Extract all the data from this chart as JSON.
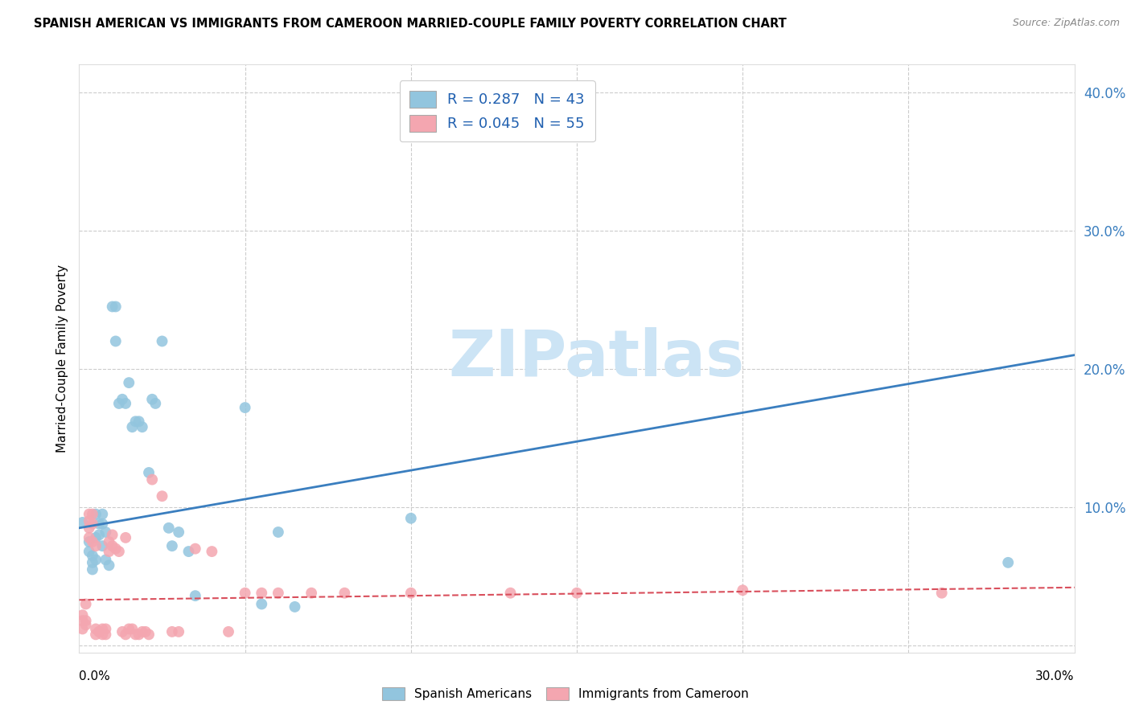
{
  "title": "SPANISH AMERICAN VS IMMIGRANTS FROM CAMEROON MARRIED-COUPLE FAMILY POVERTY CORRELATION CHART",
  "source": "Source: ZipAtlas.com",
  "ylabel": "Married-Couple Family Poverty",
  "xlim": [
    0.0,
    0.3
  ],
  "ylim": [
    -0.005,
    0.42
  ],
  "yticks": [
    0.0,
    0.1,
    0.2,
    0.3,
    0.4
  ],
  "ytick_labels": [
    "",
    "10.0%",
    "20.0%",
    "30.0%",
    "40.0%"
  ],
  "xticks": [
    0.0,
    0.05,
    0.1,
    0.15,
    0.2,
    0.25,
    0.3
  ],
  "watermark_text": "ZIPatlas",
  "legend_r1_label": "R = 0.287   N = 43",
  "legend_r2_label": "R = 0.045   N = 55",
  "blue_color": "#92c5de",
  "pink_color": "#f4a6b0",
  "blue_line_color": "#3a7ebf",
  "pink_line_color": "#d94f5c",
  "blue_scatter": [
    [
      0.001,
      0.089
    ],
    [
      0.003,
      0.075
    ],
    [
      0.003,
      0.068
    ],
    [
      0.004,
      0.065
    ],
    [
      0.004,
      0.055
    ],
    [
      0.004,
      0.06
    ],
    [
      0.005,
      0.078
    ],
    [
      0.005,
      0.062
    ],
    [
      0.005,
      0.095
    ],
    [
      0.006,
      0.08
    ],
    [
      0.006,
      0.088
    ],
    [
      0.007,
      0.072
    ],
    [
      0.007,
      0.088
    ],
    [
      0.007,
      0.095
    ],
    [
      0.008,
      0.082
    ],
    [
      0.008,
      0.062
    ],
    [
      0.009,
      0.058
    ],
    [
      0.01,
      0.245
    ],
    [
      0.011,
      0.245
    ],
    [
      0.011,
      0.22
    ],
    [
      0.012,
      0.175
    ],
    [
      0.013,
      0.178
    ],
    [
      0.014,
      0.175
    ],
    [
      0.015,
      0.19
    ],
    [
      0.016,
      0.158
    ],
    [
      0.017,
      0.162
    ],
    [
      0.018,
      0.162
    ],
    [
      0.019,
      0.158
    ],
    [
      0.021,
      0.125
    ],
    [
      0.022,
      0.178
    ],
    [
      0.023,
      0.175
    ],
    [
      0.025,
      0.22
    ],
    [
      0.027,
      0.085
    ],
    [
      0.028,
      0.072
    ],
    [
      0.03,
      0.082
    ],
    [
      0.033,
      0.068
    ],
    [
      0.035,
      0.036
    ],
    [
      0.05,
      0.172
    ],
    [
      0.055,
      0.03
    ],
    [
      0.06,
      0.082
    ],
    [
      0.065,
      0.028
    ],
    [
      0.1,
      0.092
    ],
    [
      0.28,
      0.06
    ]
  ],
  "pink_scatter": [
    [
      0.001,
      0.018
    ],
    [
      0.001,
      0.022
    ],
    [
      0.001,
      0.012
    ],
    [
      0.002,
      0.03
    ],
    [
      0.002,
      0.018
    ],
    [
      0.002,
      0.015
    ],
    [
      0.003,
      0.095
    ],
    [
      0.003,
      0.085
    ],
    [
      0.003,
      0.09
    ],
    [
      0.003,
      0.078
    ],
    [
      0.004,
      0.088
    ],
    [
      0.004,
      0.075
    ],
    [
      0.004,
      0.095
    ],
    [
      0.005,
      0.072
    ],
    [
      0.005,
      0.012
    ],
    [
      0.005,
      0.008
    ],
    [
      0.006,
      0.01
    ],
    [
      0.006,
      0.01
    ],
    [
      0.007,
      0.008
    ],
    [
      0.007,
      0.012
    ],
    [
      0.008,
      0.012
    ],
    [
      0.008,
      0.008
    ],
    [
      0.009,
      0.068
    ],
    [
      0.009,
      0.075
    ],
    [
      0.01,
      0.072
    ],
    [
      0.01,
      0.08
    ],
    [
      0.011,
      0.07
    ],
    [
      0.012,
      0.068
    ],
    [
      0.013,
      0.01
    ],
    [
      0.014,
      0.078
    ],
    [
      0.014,
      0.008
    ],
    [
      0.015,
      0.012
    ],
    [
      0.016,
      0.012
    ],
    [
      0.017,
      0.008
    ],
    [
      0.018,
      0.008
    ],
    [
      0.019,
      0.01
    ],
    [
      0.02,
      0.01
    ],
    [
      0.021,
      0.008
    ],
    [
      0.022,
      0.12
    ],
    [
      0.025,
      0.108
    ],
    [
      0.028,
      0.01
    ],
    [
      0.03,
      0.01
    ],
    [
      0.035,
      0.07
    ],
    [
      0.04,
      0.068
    ],
    [
      0.045,
      0.01
    ],
    [
      0.05,
      0.038
    ],
    [
      0.055,
      0.038
    ],
    [
      0.06,
      0.038
    ],
    [
      0.07,
      0.038
    ],
    [
      0.08,
      0.038
    ],
    [
      0.1,
      0.038
    ],
    [
      0.13,
      0.038
    ],
    [
      0.15,
      0.038
    ],
    [
      0.2,
      0.04
    ],
    [
      0.26,
      0.038
    ]
  ],
  "blue_line_x": [
    0.0,
    0.3
  ],
  "blue_line_y": [
    0.085,
    0.21
  ],
  "pink_line_x": [
    0.0,
    0.3
  ],
  "pink_line_y": [
    0.033,
    0.042
  ]
}
